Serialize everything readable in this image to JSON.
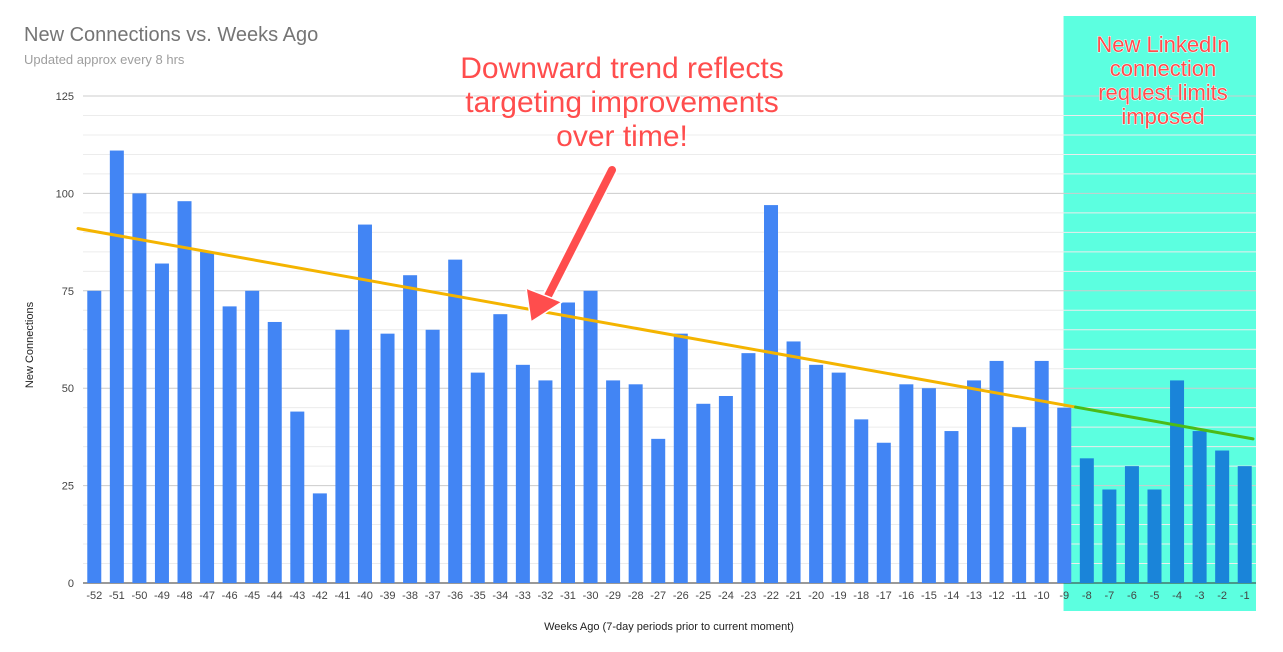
{
  "chart_data": {
    "type": "bar",
    "title": "New Connections vs. Weeks Ago",
    "subtitle": "Updated approx every 8 hrs",
    "xlabel": "Weeks Ago (7-day periods prior to current moment)",
    "ylabel": "New Connections",
    "ylim": [
      0,
      125
    ],
    "yticks": [
      0,
      25,
      50,
      75,
      100,
      125
    ],
    "grid": true,
    "categories": [
      "-52",
      "-51",
      "-50",
      "-49",
      "-48",
      "-47",
      "-46",
      "-45",
      "-44",
      "-43",
      "-42",
      "-41",
      "-40",
      "-39",
      "-38",
      "-37",
      "-36",
      "-35",
      "-34",
      "-33",
      "-32",
      "-31",
      "-30",
      "-29",
      "-28",
      "-27",
      "-26",
      "-25",
      "-24",
      "-23",
      "-22",
      "-21",
      "-20",
      "-19",
      "-18",
      "-17",
      "-16",
      "-15",
      "-14",
      "-13",
      "-12",
      "-11",
      "-10",
      "-9",
      "-8",
      "-7",
      "-6",
      "-5",
      "-4",
      "-3",
      "-2",
      "-1"
    ],
    "values": [
      75,
      111,
      100,
      82,
      98,
      85,
      71,
      75,
      67,
      44,
      23,
      65,
      92,
      64,
      79,
      65,
      83,
      54,
      69,
      56,
      52,
      72,
      75,
      52,
      51,
      37,
      64,
      46,
      48,
      59,
      97,
      62,
      56,
      54,
      42,
      36,
      51,
      50,
      39,
      52,
      57,
      40,
      57,
      45,
      32,
      24,
      30,
      24,
      52,
      39,
      34,
      30
    ],
    "colors": {
      "bar": "#4285f4",
      "bar_highlight": "#1a84d9",
      "trend": "#f4b400",
      "trend_highlight": "#4cbb17",
      "highlight_region": "#5cffe0"
    },
    "trendline": {
      "start": 91,
      "end": 37
    },
    "highlight": {
      "from": "-8",
      "to": "-1"
    },
    "annotations": [
      {
        "id": "trend-note",
        "lines": [
          "Downward trend reflects",
          "targeting improvements",
          "over time!"
        ],
        "color": "#ff4d4d"
      },
      {
        "id": "limits-note",
        "lines": [
          "New LinkedIn",
          "connection",
          "request limits",
          "imposed"
        ],
        "color": "#ff4d4d"
      }
    ]
  }
}
